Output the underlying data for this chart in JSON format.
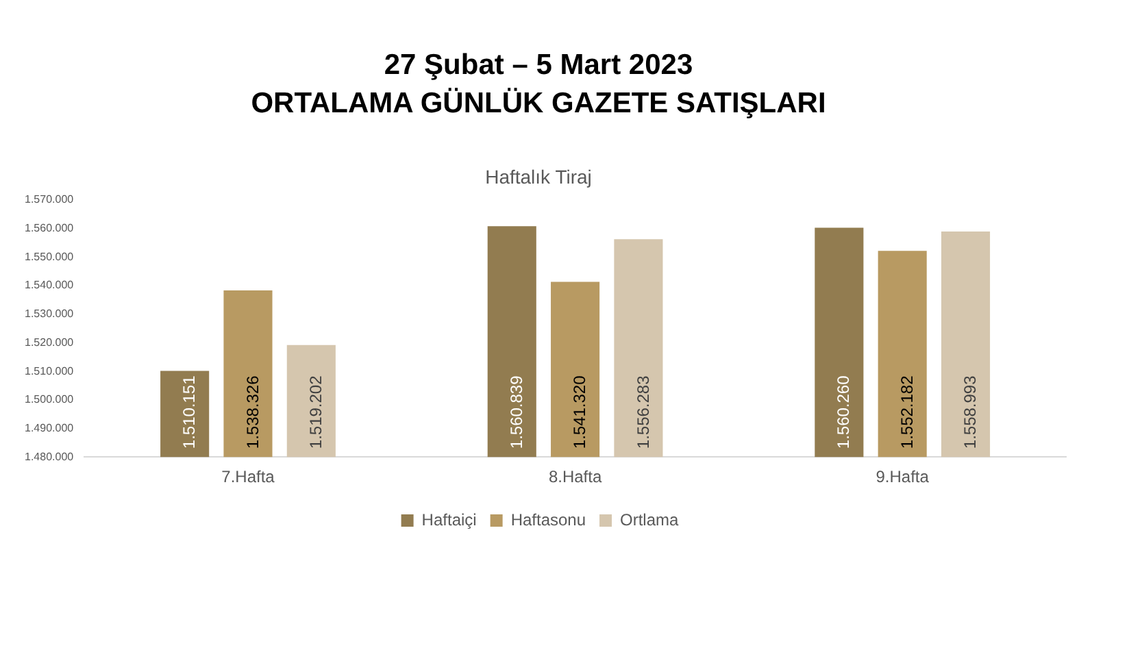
{
  "chart_data": {
    "type": "bar",
    "title": "27 Şubat – 5 Mart 2023",
    "subtitle": "ORTALAMA GÜNLÜK GAZETE SATIŞLARI",
    "annotations": [
      "Haftalık Tiraj"
    ],
    "categories": [
      "7.Hafta",
      "8.Hafta",
      "9.Hafta"
    ],
    "series": [
      {
        "name": "Haftaiçi",
        "color": "#927c50",
        "values": [
          1510151,
          1560839,
          1560260
        ],
        "value_labels": [
          "1.510.151",
          "1.560.839",
          "1.560.260"
        ]
      },
      {
        "name": "Haftasonu",
        "color": "#b89a62",
        "values": [
          1538326,
          1541320,
          1552182
        ],
        "value_labels": [
          "1.538.326",
          "1.541.320",
          "1.552.182"
        ]
      },
      {
        "name": "Ortlama",
        "color": "#d5c6ae",
        "values": [
          1519202,
          1556283,
          1558993
        ],
        "value_labels": [
          "1.519.202",
          "1.556.283",
          "1.558.993"
        ]
      }
    ],
    "ylim": [
      1480000,
      1570000
    ],
    "yticks": [
      {
        "value": 1480000,
        "label": "1.480.000"
      },
      {
        "value": 1490000,
        "label": "1.490.000"
      },
      {
        "value": 1500000,
        "label": "1.500.000"
      },
      {
        "value": 1510000,
        "label": "1.510.000"
      },
      {
        "value": 1520000,
        "label": "1.520.000"
      },
      {
        "value": 1530000,
        "label": "1.530.000"
      },
      {
        "value": 1540000,
        "label": "1.540.000"
      },
      {
        "value": 1550000,
        "label": "1.550.000"
      },
      {
        "value": 1560000,
        "label": "1.560.000"
      },
      {
        "value": 1570000,
        "label": "1.570.000"
      }
    ],
    "grid": false,
    "legend": "bottom"
  }
}
